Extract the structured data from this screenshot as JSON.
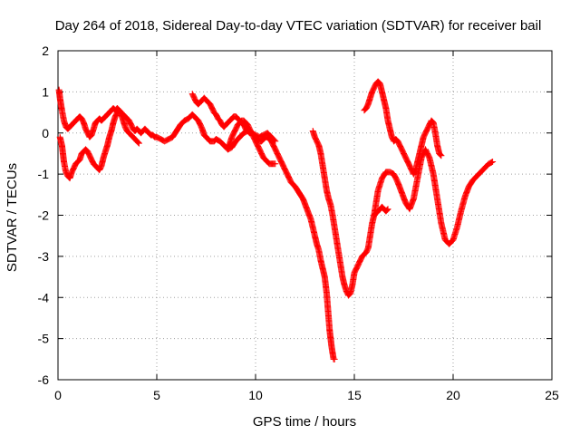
{
  "chart_data": {
    "type": "scatter",
    "title": "Day 264 of 2018, Sidereal Day-to-day VTEC variation (SDTVAR) for receiver bail",
    "xlabel": "GPS time / hours",
    "ylabel": "SDTVAR / TECUs",
    "xlim": [
      0,
      25
    ],
    "ylim": [
      -6,
      2
    ],
    "xticks": [
      0,
      5,
      10,
      15,
      20,
      25
    ],
    "yticks": [
      -6,
      -5,
      -4,
      -3,
      -2,
      -1,
      0,
      1,
      2
    ],
    "grid": true,
    "legend": "none",
    "marker": "plus",
    "color": "#ff0000",
    "series": [
      {
        "x": [
          0.05,
          0.1,
          0.15,
          0.2,
          0.3,
          0.4,
          0.5,
          0.6,
          0.7,
          0.8,
          0.9,
          1.0,
          1.1,
          1.2,
          1.3,
          1.4,
          1.5,
          1.6,
          1.7,
          1.8,
          1.9,
          2.0,
          2.1,
          2.2,
          2.3,
          2.4,
          2.5,
          2.6,
          2.7,
          2.8,
          2.9,
          3.0,
          3.1,
          3.2,
          3.3,
          3.4,
          3.5,
          3.6,
          3.7,
          3.8,
          3.9,
          4.0,
          4.1,
          4.2,
          4.3,
          4.4,
          4.5,
          4.6,
          4.7,
          4.8,
          4.9,
          5.0
        ],
        "y": [
          1.05,
          0.85,
          0.7,
          0.55,
          0.3,
          0.15,
          0.1,
          0.15,
          0.2,
          0.25,
          0.3,
          0.35,
          0.4,
          0.35,
          0.25,
          0.1,
          0.0,
          -0.1,
          -0.05,
          0.1,
          0.25,
          0.3,
          0.35,
          0.3,
          0.35,
          0.4,
          0.45,
          0.5,
          0.55,
          0.6,
          0.55,
          0.6,
          0.55,
          0.5,
          0.45,
          0.4,
          0.35,
          0.3,
          0.2,
          0.1,
          0.05,
          0.1,
          0.05,
          0.0,
          0.05,
          0.1,
          0.05,
          0.0,
          -0.05,
          -0.05,
          -0.1,
          -0.1
        ]
      },
      {
        "x": [
          0.1,
          0.15,
          0.2,
          0.25,
          0.3,
          0.4,
          0.5,
          0.6,
          0.7,
          0.8,
          0.9,
          1.0,
          1.1,
          1.2,
          1.3,
          1.4,
          1.5,
          1.6,
          1.7,
          1.8,
          1.9,
          2.0,
          2.1,
          2.2,
          2.3,
          2.4,
          2.5,
          2.6,
          2.7,
          2.8,
          2.9,
          3.0,
          3.1,
          3.2,
          3.3,
          3.4,
          3.5,
          3.6,
          3.7,
          3.8,
          3.9,
          4.0,
          4.1
        ],
        "y": [
          -0.1,
          -0.2,
          -0.3,
          -0.5,
          -0.7,
          -0.95,
          -1.05,
          -1.1,
          -0.95,
          -0.85,
          -0.75,
          -0.7,
          -0.65,
          -0.5,
          -0.45,
          -0.4,
          -0.45,
          -0.55,
          -0.65,
          -0.75,
          -0.8,
          -0.85,
          -0.9,
          -0.8,
          -0.6,
          -0.45,
          -0.3,
          -0.1,
          0.05,
          0.25,
          0.4,
          0.5,
          0.55,
          0.45,
          0.3,
          0.15,
          0.05,
          0.0,
          -0.05,
          -0.1,
          -0.15,
          -0.2,
          -0.25
        ]
      },
      {
        "x": [
          5.0,
          5.2,
          5.4,
          5.6,
          5.8,
          6.0,
          6.2,
          6.4,
          6.6,
          6.7,
          6.8,
          6.9,
          7.0,
          7.1,
          7.2,
          7.3,
          7.4,
          7.5,
          7.6,
          7.7,
          7.8,
          7.9,
          8.0,
          8.2,
          8.4,
          8.6,
          8.8,
          9.0,
          9.2,
          9.4,
          9.6,
          9.8,
          10.0,
          10.2,
          10.4,
          10.6,
          10.8,
          11.0
        ],
        "y": [
          -0.1,
          -0.15,
          -0.2,
          -0.15,
          -0.1,
          0.05,
          0.2,
          0.3,
          0.35,
          0.4,
          0.45,
          0.4,
          0.35,
          0.3,
          0.2,
          0.1,
          -0.05,
          -0.1,
          -0.15,
          -0.2,
          -0.2,
          -0.2,
          -0.15,
          -0.2,
          -0.3,
          -0.4,
          -0.35,
          -0.2,
          -0.1,
          0.0,
          0.05,
          0.0,
          -0.05,
          -0.1,
          -0.05,
          0.0,
          -0.1,
          -0.2
        ]
      },
      {
        "x": [
          6.8,
          6.9,
          7.0,
          7.1,
          7.2,
          7.3,
          7.4,
          7.5,
          7.6,
          7.7,
          7.8,
          7.9,
          8.0,
          8.1,
          8.2,
          8.3,
          8.4,
          8.5,
          8.6,
          8.7,
          8.8,
          8.9,
          9.0,
          9.1,
          9.2,
          9.3,
          9.4,
          9.5,
          9.6,
          9.7,
          9.8,
          9.9,
          10.0,
          10.1,
          10.2,
          10.3,
          10.4,
          10.5,
          10.6,
          10.7,
          10.8,
          10.9,
          11.0,
          11.1,
          11.2,
          11.4,
          11.6,
          11.8,
          12.0,
          12.2,
          12.4,
          12.6,
          12.8,
          13.0,
          13.1,
          13.2,
          13.3,
          13.4,
          13.5,
          13.6,
          13.65,
          13.7,
          13.75,
          13.8,
          13.85,
          13.9,
          13.95,
          14.0
        ],
        "y": [
          0.95,
          0.85,
          0.75,
          0.7,
          0.75,
          0.8,
          0.85,
          0.8,
          0.75,
          0.7,
          0.6,
          0.5,
          0.45,
          0.35,
          0.3,
          0.2,
          0.15,
          0.2,
          0.25,
          0.3,
          0.35,
          0.4,
          0.4,
          0.35,
          0.3,
          0.25,
          0.2,
          0.1,
          0.05,
          0.0,
          0.0,
          -0.05,
          -0.1,
          -0.15,
          -0.2,
          -0.2,
          -0.15,
          -0.1,
          -0.1,
          -0.15,
          -0.2,
          -0.3,
          -0.4,
          -0.5,
          -0.6,
          -0.8,
          -1.0,
          -1.2,
          -1.3,
          -1.45,
          -1.6,
          -1.85,
          -2.1,
          -2.5,
          -2.7,
          -2.85,
          -3.1,
          -3.3,
          -3.5,
          -3.9,
          -4.2,
          -4.5,
          -4.8,
          -5.0,
          -5.2,
          -5.35,
          -5.5,
          -5.5
        ]
      },
      {
        "x": [
          8.6,
          8.7,
          8.8,
          8.9,
          9.0,
          9.1,
          9.2,
          9.3,
          9.4,
          9.5,
          9.6,
          9.7,
          9.8,
          9.9,
          10.0,
          10.1,
          10.2,
          10.3,
          10.4,
          10.5,
          10.6,
          10.7,
          10.8,
          11.0
        ],
        "y": [
          -0.35,
          -0.25,
          -0.1,
          0.0,
          0.1,
          0.2,
          0.25,
          0.3,
          0.3,
          0.25,
          0.2,
          0.1,
          0.0,
          -0.1,
          -0.2,
          -0.3,
          -0.4,
          -0.5,
          -0.6,
          -0.65,
          -0.7,
          -0.75,
          -0.75,
          -0.75
        ]
      },
      {
        "x": [
          12.9,
          13.0,
          13.1,
          13.2,
          13.3,
          13.4,
          13.5,
          13.6,
          13.7,
          13.8,
          13.9,
          14.0,
          14.1,
          14.2,
          14.3,
          14.4,
          14.5,
          14.6,
          14.7,
          14.8,
          14.9,
          15.0,
          15.1,
          15.2,
          15.3,
          15.4,
          15.5,
          15.6,
          15.7,
          15.8,
          15.9,
          16.0,
          16.1,
          16.2,
          16.3,
          16.4,
          16.5,
          16.6,
          16.7
        ],
        "y": [
          0.05,
          -0.1,
          -0.2,
          -0.3,
          -0.5,
          -0.8,
          -1.1,
          -1.4,
          -1.6,
          -1.75,
          -2.0,
          -2.3,
          -2.6,
          -2.9,
          -3.2,
          -3.5,
          -3.7,
          -3.85,
          -3.95,
          -3.9,
          -3.7,
          -3.4,
          -3.3,
          -3.2,
          -3.1,
          -3.0,
          -2.95,
          -2.9,
          -2.8,
          -2.5,
          -2.2,
          -2.0,
          -1.95,
          -1.9,
          -1.85,
          -1.8,
          -1.85,
          -1.9,
          -1.85
        ]
      },
      {
        "x": [
          15.5,
          15.6,
          15.7,
          15.8,
          15.9,
          16.0,
          16.1,
          16.2,
          16.3,
          16.4,
          16.5,
          16.6,
          16.7,
          16.8,
          16.9,
          17.0,
          17.1,
          17.2,
          17.3,
          17.4,
          17.5,
          17.6,
          17.7,
          17.8,
          17.9,
          18.0,
          18.1,
          18.2,
          18.3,
          18.4,
          18.5,
          18.6,
          18.7,
          18.8,
          18.9,
          19.0,
          19.1,
          19.2,
          19.3,
          19.4
        ],
        "y": [
          0.55,
          0.6,
          0.7,
          0.85,
          1.0,
          1.1,
          1.2,
          1.25,
          1.2,
          1.0,
          0.8,
          0.6,
          0.3,
          0.1,
          -0.1,
          -0.2,
          -0.15,
          -0.2,
          -0.3,
          -0.4,
          -0.5,
          -0.6,
          -0.7,
          -0.8,
          -0.9,
          -1.0,
          -0.9,
          -0.7,
          -0.5,
          -0.3,
          -0.1,
          0.0,
          0.1,
          0.2,
          0.3,
          0.25,
          0.0,
          -0.3,
          -0.5,
          -0.55
        ]
      },
      {
        "x": [
          16.0,
          16.2,
          16.4,
          16.6,
          16.8,
          17.0,
          17.2,
          17.4,
          17.6,
          17.8,
          18.0,
          18.2,
          18.4,
          18.6,
          18.8,
          19.0,
          19.2,
          19.4,
          19.6,
          19.8,
          20.0,
          20.2,
          20.4,
          20.6,
          20.8,
          21.0,
          21.2,
          21.4,
          21.6,
          21.8,
          22.0
        ],
        "y": [
          -2.0,
          -1.4,
          -1.1,
          -0.95,
          -0.95,
          -1.0,
          -1.2,
          -1.45,
          -1.7,
          -1.85,
          -1.6,
          -1.1,
          -0.6,
          -0.4,
          -0.6,
          -1.0,
          -1.6,
          -2.2,
          -2.6,
          -2.7,
          -2.6,
          -2.3,
          -1.9,
          -1.55,
          -1.3,
          -1.15,
          -1.05,
          -0.95,
          -0.85,
          -0.75,
          -0.7
        ]
      }
    ]
  }
}
